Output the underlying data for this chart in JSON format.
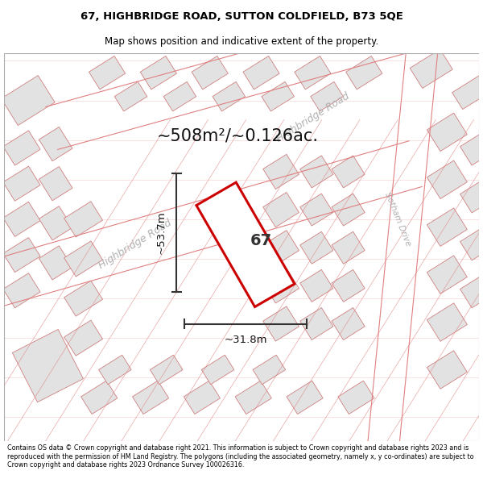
{
  "title_line1": "67, HIGHBRIDGE ROAD, SUTTON COLDFIELD, B73 5QE",
  "title_line2": "Map shows position and indicative extent of the property.",
  "area_label": "~508m²/~0.126ac.",
  "property_number": "67",
  "dim_vertical": "~53.7m",
  "dim_horizontal": "~31.8m",
  "road_label_lower": "Highbridge Road",
  "road_label_upper": "Highbridge Road",
  "road_label_right": "Sotham Drive",
  "footer_text": "Contains OS data © Crown copyright and database right 2021. This information is subject to Crown copyright and database rights 2023 and is reproduced with the permission of HM Land Registry. The polygons (including the associated geometry, namely x, y co-ordinates) are subject to Crown copyright and database rights 2023 Ordnance Survey 100026316.",
  "map_bg": "#f2f1f0",
  "property_outline_color": "#cc0000",
  "property_fill_color": "#ffffff",
  "dim_line_color": "#333333",
  "building_fill": "#e2e2e2",
  "building_edge": "#d08080",
  "plot_line_color": "#e08080",
  "road_label_color": "#b0b0b0",
  "title_color": "#000000",
  "footer_fontsize": 5.8,
  "title_fontsize": 9.5,
  "subtitle_fontsize": 8.5
}
